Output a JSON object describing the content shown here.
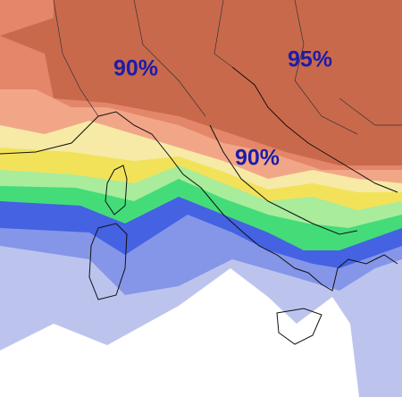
{
  "map": {
    "labels": [
      {
        "text": "90%"
      },
      {
        "text": "95%"
      },
      {
        "text": "90%"
      }
    ]
  }
}
